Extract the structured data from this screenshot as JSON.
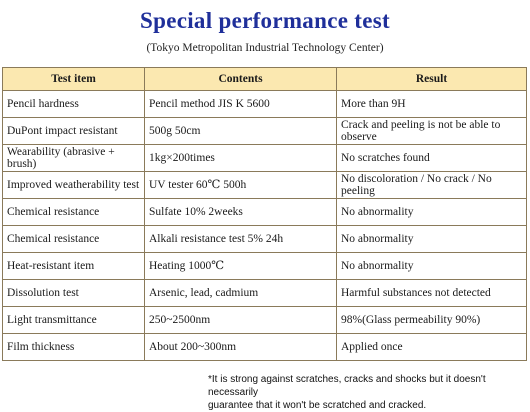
{
  "title": "Special performance test",
  "subtitle": "(Tokyo Metropolitan Industrial Technology Center)",
  "table": {
    "headers": [
      "Test item",
      "Contents",
      "Result"
    ],
    "rows": [
      [
        "Pencil hardness",
        "Pencil method JIS K 5600",
        "More than 9H"
      ],
      [
        "DuPont impact resistant",
        "500g  50cm",
        "Crack and peeling is not be able to observe"
      ],
      [
        "Wearability (abrasive + brush)",
        "1kg×200times",
        "No scratches found"
      ],
      [
        "Improved weatherability test",
        "UV tester 60℃ 500h",
        "No discoloration / No crack / No peeling"
      ],
      [
        "Chemical resistance",
        "Sulfate 10% 2weeks",
        "No abnormality"
      ],
      [
        "Chemical resistance",
        "Alkali resistance test 5% 24h",
        "No abnormality"
      ],
      [
        "Heat-resistant item",
        "Heating 1000℃",
        "No abnormality"
      ],
      [
        "Dissolution test",
        "Arsenic, lead, cadmium",
        "Harmful substances not detected"
      ],
      [
        "Light transmittance",
        "250~2500nm",
        "98%(Glass permeability 90%)"
      ],
      [
        "Film thickness",
        "About 200~300nm",
        "Applied once"
      ]
    ]
  },
  "footnote": {
    "line1": "*It is strong against scratches, cracks and shocks but it doesn't necessarily",
    "line2": "guarantee that it won't be scratched and cracked."
  },
  "colors": {
    "title": "#1f2f9a",
    "header_bg": "#fbe8b0",
    "border": "#8a7a5a"
  }
}
